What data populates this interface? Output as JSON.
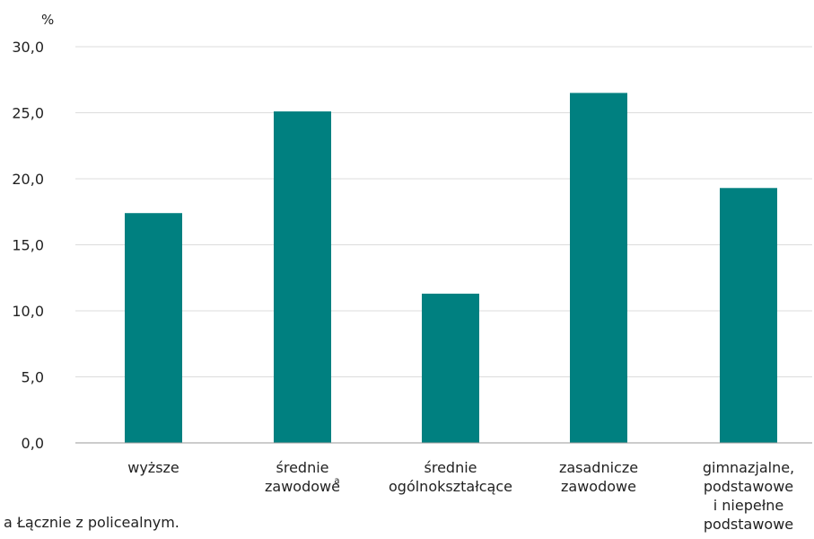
{
  "chart_data": {
    "type": "bar",
    "unit_label": "%",
    "categories": [
      [
        "wyższe"
      ],
      [
        "średnie",
        "zawodowe"
      ],
      [
        "średnie",
        "ogólnokształcące"
      ],
      [
        "zasadnicze",
        "zawodowe"
      ],
      [
        "gimnazjalne,",
        "podstawowe",
        "i niepełne",
        "podstawowe"
      ]
    ],
    "category_superscripts": [
      "",
      "a",
      "",
      "",
      ""
    ],
    "values": [
      17.4,
      25.1,
      11.3,
      26.5,
      19.3
    ],
    "ylim": [
      0,
      30
    ],
    "yticks": [
      "0,0",
      "5,0",
      "10,0",
      "15,0",
      "20,0",
      "25,0",
      "30,0"
    ],
    "grid": true,
    "bar_color": "#008080"
  },
  "footnote": "a Łącznie z policealnym."
}
